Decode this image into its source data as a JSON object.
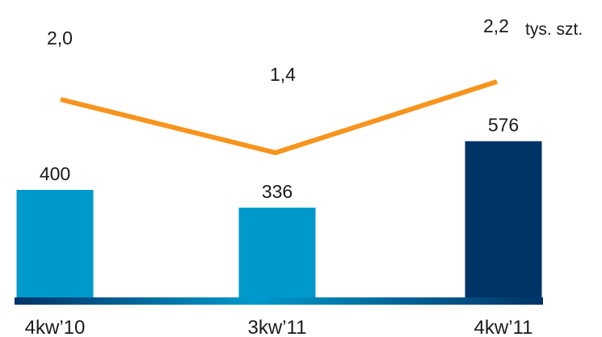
{
  "chart_data": {
    "type": "bar",
    "categories": [
      "4kw’10",
      "3kw’11",
      "4kw’11"
    ],
    "series": [
      {
        "values": [
          400,
          336,
          576
        ],
        "value_labels": [
          "400",
          "336",
          "576"
        ],
        "colors": [
          "#0099cc",
          "#0099cc",
          "#003366"
        ]
      },
      {
        "type": "line",
        "values": [
          2.0,
          1.4,
          2.2
        ],
        "value_labels": [
          "2,0",
          "1,4",
          "2,2"
        ],
        "color": "#f7941d",
        "unit": "tys. szt."
      }
    ],
    "title": "",
    "xlabel": "",
    "ylabel": "",
    "grid": false,
    "legend": "none"
  }
}
